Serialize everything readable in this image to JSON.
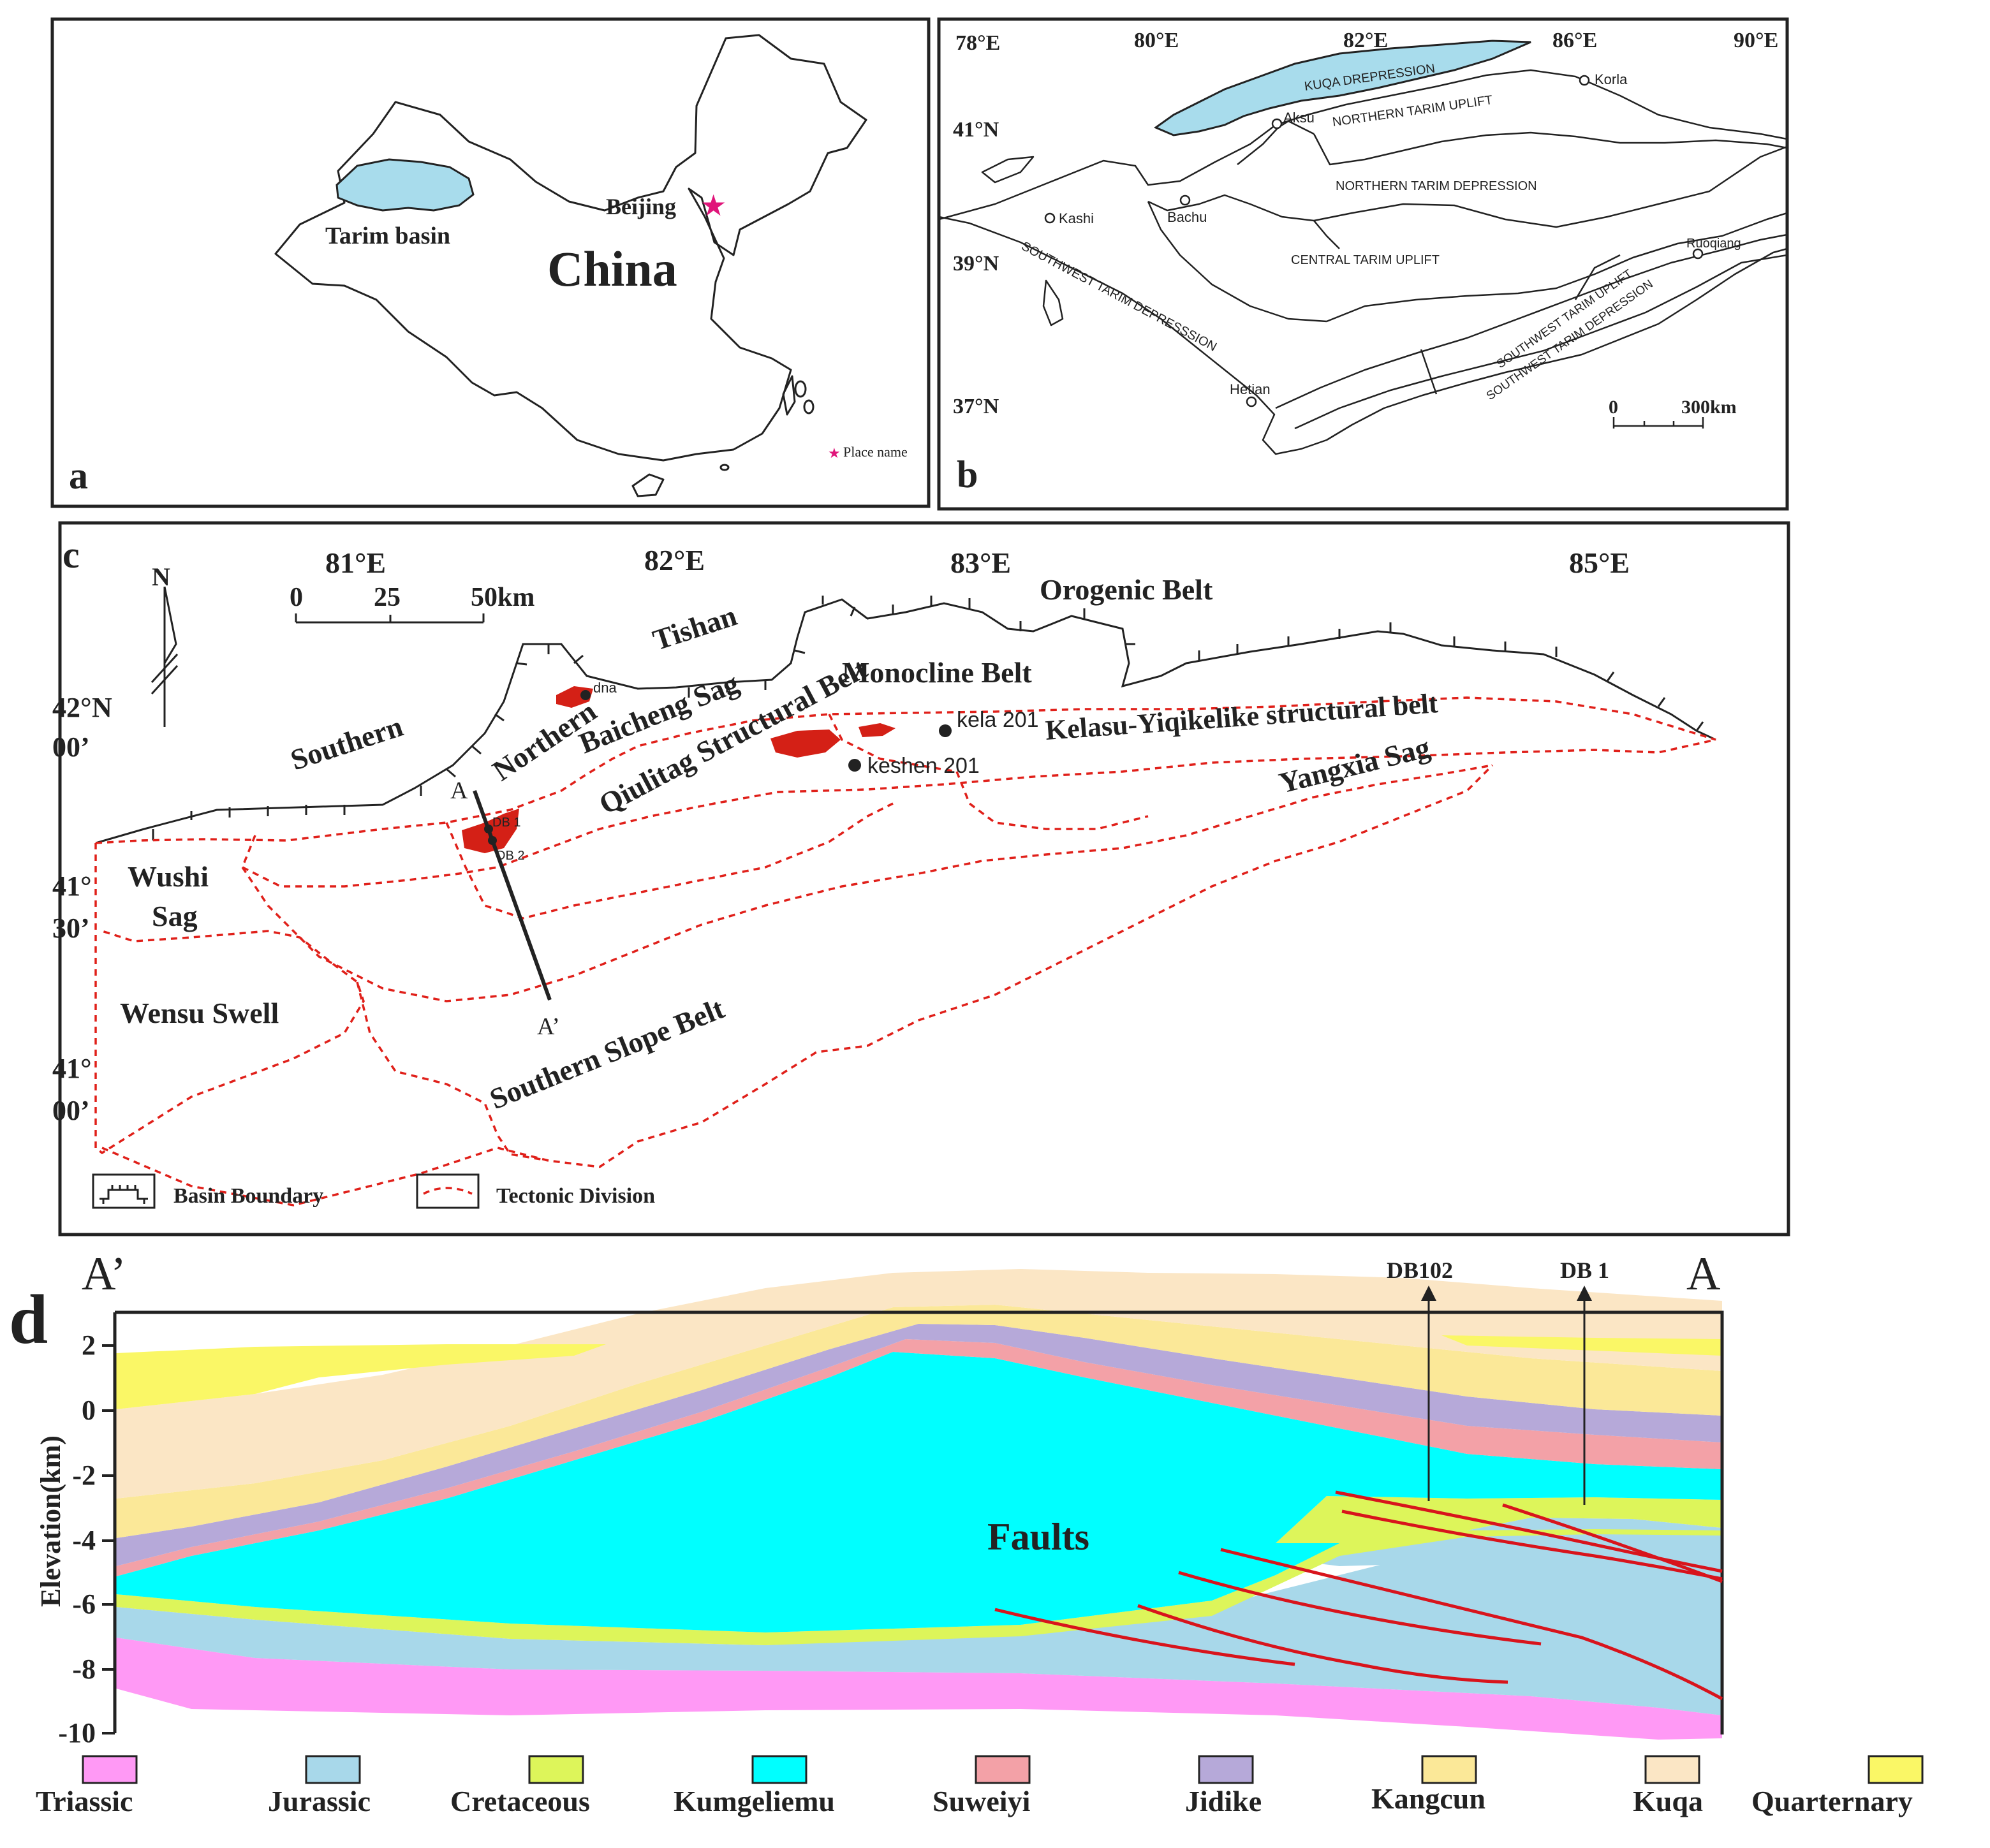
{
  "panel_a": {
    "label": "a",
    "country": "China",
    "basin": "Tarim basin",
    "capital": "Beijing",
    "legend_place": "Place name",
    "colors": {
      "basin_fill": "#a8dcec",
      "star": "#e0157a"
    }
  },
  "panel_b": {
    "label": "b",
    "lon_ticks": [
      "78°E",
      "80°E",
      "82°E",
      "86°E",
      "90°E"
    ],
    "lat_ticks": [
      "41°N",
      "39°N",
      "37°N"
    ],
    "units": [
      "KUQA DREPRESSION",
      "NORTHERN TARIM UPLIFT",
      "NORTHERN TARIM DEPRESSION",
      "CENTRAL TARIM UPLIFT",
      "SOUTHWEST TARIM DEPRESSSION",
      "SOUTHWEST TARIM UPLIFT",
      "SOUTHWEST TARIM DEPRESSION"
    ],
    "cities": [
      "Korla",
      "Aksu",
      "Kashi",
      "Bachu",
      "Ruoqiang",
      "Hetian"
    ],
    "scale": {
      "zero": "0",
      "value": "300km"
    }
  },
  "panel_c": {
    "label": "c",
    "lon_ticks": [
      "81°E",
      "82°E",
      "83°E",
      "85°E"
    ],
    "lat_ticks": [
      {
        "deg": "42°",
        "min": "N",
        "sec": "00’"
      },
      {
        "deg": "41°",
        "min": "",
        "sec": "30’"
      },
      {
        "deg": "41°",
        "min": "",
        "sec": "00’"
      }
    ],
    "north": "N",
    "scale": [
      "0",
      "25",
      "50km"
    ],
    "units": [
      "Orogenic Belt",
      "Tishan",
      "Monocline Belt",
      "Southern",
      "Northern",
      "Baicheng Sag",
      "Qiulitag Structural Belt",
      "Kelasu-Yiqikelike structural belt",
      "Yangxia Sag",
      "Wushi",
      "Sag",
      "Wensu Swell",
      "Southern Slope Belt"
    ],
    "wells": [
      "dna",
      "kela 201",
      "keshen 201",
      "DB 1",
      "DB 2"
    ],
    "section_ends": [
      "A",
      "A’"
    ],
    "legend": [
      "Basin Boundary",
      "Tectonic Division"
    ],
    "colors": {
      "field": "#d42016",
      "division": "#e0201a"
    }
  },
  "panel_d": {
    "label": "d",
    "left_end": "A’",
    "right_end": "A",
    "ylabel": "Elevation(km)",
    "y_ticks": [
      "2",
      "0",
      "-2",
      "-4",
      "-6",
      "-8",
      "-10"
    ],
    "ylim": [
      -10,
      2.5
    ],
    "wells": [
      "DB102",
      "DB 1"
    ],
    "annotation": "Faults",
    "legend": [
      {
        "name": "Triassic",
        "color": "#ff99f5"
      },
      {
        "name": "Jurassic",
        "color": "#a8d8ea"
      },
      {
        "name": "Cretaceous",
        "color": "#ddf55a"
      },
      {
        "name": "Kumgeliemu",
        "color": "#00ffff"
      },
      {
        "name": "Suweiyi",
        "color": "#f3a1a7"
      },
      {
        "name": "Jidike",
        "color": "#b6a9d9"
      },
      {
        "name": "Kangcun",
        "color": "#fbe898"
      },
      {
        "name": "Kuqa",
        "color": "#fbe6c5"
      },
      {
        "name": "Quarternary",
        "color": "#faf766"
      }
    ]
  }
}
